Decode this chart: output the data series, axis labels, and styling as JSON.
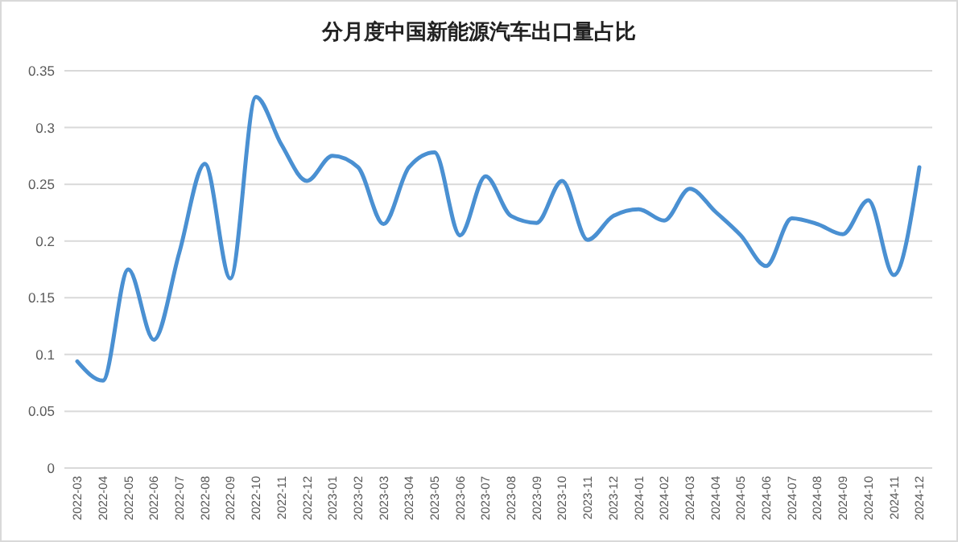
{
  "chart_data": {
    "type": "line",
    "title": "分月度中国新能源汽车出口量占比",
    "categories": [
      "2022-03",
      "2022-04",
      "2022-05",
      "2022-06",
      "2022-07",
      "2022-08",
      "2022-09",
      "2022-10",
      "2022-11",
      "2022-12",
      "2023-01",
      "2023-02",
      "2023-03",
      "2023-04",
      "2023-05",
      "2023-06",
      "2023-07",
      "2023-08",
      "2023-09",
      "2023-10",
      "2023-11",
      "2023-12",
      "2024-01",
      "2024-02",
      "2024-03",
      "2024-04",
      "2024-05",
      "2024-06",
      "2024-07",
      "2024-08",
      "2024-09",
      "2024-10",
      "2024-11",
      "2024-12"
    ],
    "series": [
      {
        "color": "#4a90d2",
        "values": [
          0.094,
          0.077,
          0.175,
          0.113,
          0.19,
          0.268,
          0.167,
          0.327,
          0.285,
          0.253,
          0.275,
          0.265,
          0.215,
          0.265,
          0.278,
          0.205,
          0.257,
          0.222,
          0.216,
          0.253,
          0.201,
          0.222,
          0.228,
          0.218,
          0.246,
          0.226,
          0.205,
          0.178,
          0.22,
          0.215,
          0.206,
          0.236,
          0.17,
          0.265
        ]
      }
    ],
    "ylim": [
      0,
      0.35
    ],
    "yticks": [
      0,
      0.05,
      0.1,
      0.15,
      0.2,
      0.25,
      0.3,
      0.35
    ],
    "grid": "y",
    "marker": "none",
    "line_style": "solid"
  }
}
